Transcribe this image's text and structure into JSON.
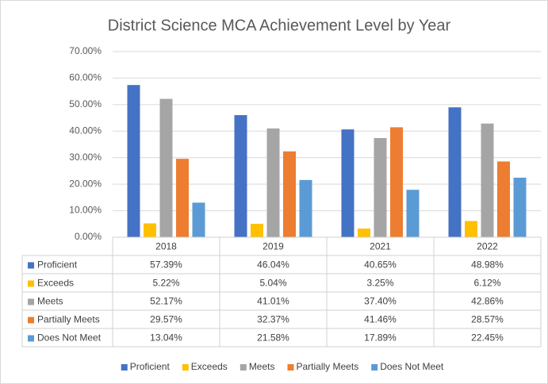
{
  "chart_data": {
    "type": "bar",
    "title": "District Science MCA Achievement Level by Year",
    "categories": [
      "2018",
      "2019",
      "2021",
      "2022"
    ],
    "series": [
      {
        "name": "Proficient",
        "color": "#4472c4",
        "values": [
          57.39,
          46.04,
          40.65,
          48.98
        ],
        "value_labels": [
          "57.39%",
          "46.04%",
          "40.65%",
          "48.98%"
        ]
      },
      {
        "name": "Exceeds",
        "color": "#ffc000",
        "values": [
          5.22,
          5.04,
          3.25,
          6.12
        ],
        "value_labels": [
          "5.22%",
          "5.04%",
          "3.25%",
          "6.12%"
        ]
      },
      {
        "name": "Meets",
        "color": "#a5a5a5",
        "values": [
          52.17,
          41.01,
          37.4,
          42.86
        ],
        "value_labels": [
          "52.17%",
          "41.01%",
          "37.40%",
          "42.86%"
        ]
      },
      {
        "name": "Partially Meets",
        "color": "#ed7d31",
        "values": [
          29.57,
          32.37,
          41.46,
          28.57
        ],
        "value_labels": [
          "29.57%",
          "32.37%",
          "41.46%",
          "28.57%"
        ]
      },
      {
        "name": "Does Not Meet",
        "color": "#5b9bd5",
        "values": [
          13.04,
          21.58,
          17.89,
          22.45
        ],
        "value_labels": [
          "13.04%",
          "21.58%",
          "17.89%",
          "22.45%"
        ]
      }
    ],
    "ylim": [
      0,
      70
    ],
    "yticks": [
      {
        "value": 0,
        "label": "0.00%"
      },
      {
        "value": 10,
        "label": "10.00%"
      },
      {
        "value": 20,
        "label": "20.00%"
      },
      {
        "value": 30,
        "label": "30.00%"
      },
      {
        "value": 40,
        "label": "40.00%"
      },
      {
        "value": 50,
        "label": "50.00%"
      },
      {
        "value": 60,
        "label": "60.00%"
      },
      {
        "value": 70,
        "label": "70.00%"
      }
    ],
    "grid": true,
    "legend": "bottom"
  }
}
